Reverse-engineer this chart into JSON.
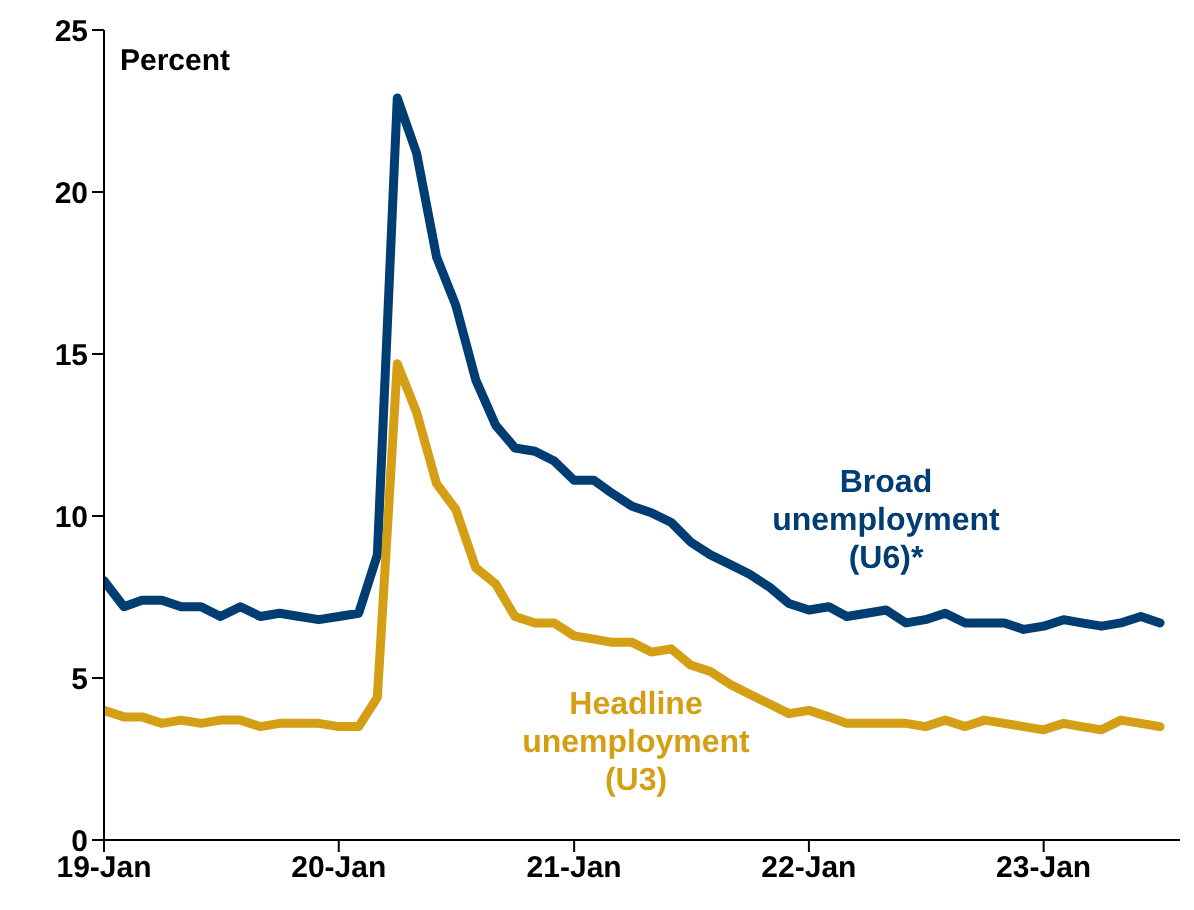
{
  "chart_data": {
    "type": "line",
    "annotations": [
      "Percent"
    ],
    "x": [
      "2019-01",
      "2019-02",
      "2019-03",
      "2019-04",
      "2019-05",
      "2019-06",
      "2019-07",
      "2019-08",
      "2019-09",
      "2019-10",
      "2019-11",
      "2019-12",
      "2020-01",
      "2020-02",
      "2020-03",
      "2020-04",
      "2020-05",
      "2020-06",
      "2020-07",
      "2020-08",
      "2020-09",
      "2020-10",
      "2020-11",
      "2020-12",
      "2021-01",
      "2021-02",
      "2021-03",
      "2021-04",
      "2021-05",
      "2021-06",
      "2021-07",
      "2021-08",
      "2021-09",
      "2021-10",
      "2021-11",
      "2021-12",
      "2022-01",
      "2022-02",
      "2022-03",
      "2022-04",
      "2022-05",
      "2022-06",
      "2022-07",
      "2022-08",
      "2022-09",
      "2022-10",
      "2022-11",
      "2022-12",
      "2023-01",
      "2023-02",
      "2023-03",
      "2023-04",
      "2023-05",
      "2023-06",
      "2023-07"
    ],
    "series": [
      {
        "name": "Broad unemployment (U6)*",
        "color": "#003d73",
        "values": [
          8.0,
          7.2,
          7.4,
          7.4,
          7.2,
          7.2,
          6.9,
          7.2,
          6.9,
          7.0,
          6.9,
          6.8,
          6.9,
          7.0,
          8.8,
          22.9,
          21.2,
          18.0,
          16.5,
          14.2,
          12.8,
          12.1,
          12.0,
          11.7,
          11.1,
          11.1,
          10.7,
          10.3,
          10.1,
          9.8,
          9.2,
          8.8,
          8.5,
          8.2,
          7.8,
          7.3,
          7.1,
          7.2,
          6.9,
          7.0,
          7.1,
          6.7,
          6.8,
          7.0,
          6.7,
          6.7,
          6.7,
          6.5,
          6.6,
          6.8,
          6.7,
          6.6,
          6.7,
          6.9,
          6.7
        ]
      },
      {
        "name": "Headline unemployment (U3)",
        "color": "#d49f14",
        "values": [
          4.0,
          3.8,
          3.8,
          3.6,
          3.7,
          3.6,
          3.7,
          3.7,
          3.5,
          3.6,
          3.6,
          3.6,
          3.5,
          3.5,
          4.4,
          14.7,
          13.2,
          11.0,
          10.2,
          8.4,
          7.9,
          6.9,
          6.7,
          6.7,
          6.3,
          6.2,
          6.1,
          6.1,
          5.8,
          5.9,
          5.4,
          5.2,
          4.8,
          4.5,
          4.2,
          3.9,
          4.0,
          3.8,
          3.6,
          3.6,
          3.6,
          3.6,
          3.5,
          3.7,
          3.5,
          3.7,
          3.6,
          3.5,
          3.4,
          3.6,
          3.5,
          3.4,
          3.7,
          3.6,
          3.5
        ]
      }
    ],
    "xlim": [
      "2019-01",
      "2023-08"
    ],
    "xticks": [
      {
        "value": "2019-01",
        "label": "19-Jan"
      },
      {
        "value": "2020-01",
        "label": "20-Jan"
      },
      {
        "value": "2021-01",
        "label": "21-Jan"
      },
      {
        "value": "2022-01",
        "label": "22-Jan"
      },
      {
        "value": "2023-01",
        "label": "23-Jan"
      }
    ],
    "ylim": [
      0,
      25
    ],
    "yticks": [
      0,
      5,
      10,
      15,
      20,
      25
    ],
    "grid": false,
    "legend": false,
    "marker": "none",
    "line_style": "solid"
  }
}
